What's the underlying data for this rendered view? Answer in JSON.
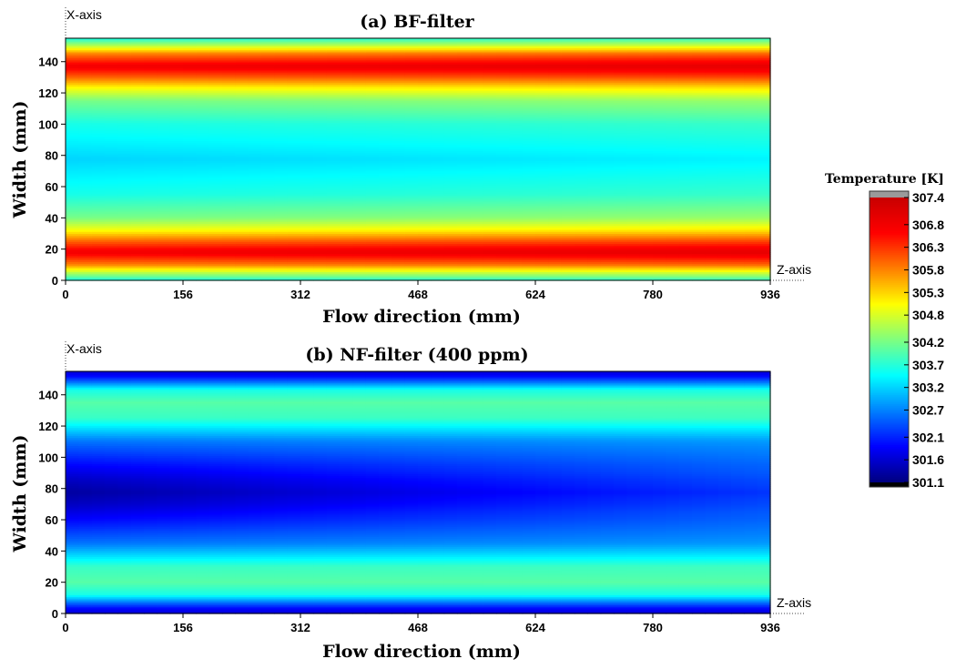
{
  "chart_data": [
    {
      "type": "heatmap",
      "title": "(a) BF-filter",
      "xlabel": "Flow direction (mm)",
      "ylabel": "Width (mm)",
      "x_axis_name": "Z-axis",
      "y_axis_name": "X-axis",
      "xlim": [
        0,
        936
      ],
      "ylim": [
        0,
        155
      ],
      "x_ticks": [
        "0",
        "156",
        "312",
        "468",
        "624",
        "780",
        "936"
      ],
      "y_ticks": [
        "0",
        "20",
        "40",
        "60",
        "80",
        "100",
        "120",
        "140"
      ],
      "profile": {
        "width_mm": [
          0,
          5,
          10,
          18,
          25,
          32,
          40,
          55,
          77.5,
          100,
          115,
          123,
          130,
          137,
          145,
          150,
          155
        ],
        "temperature_K": [
          303.6,
          304.6,
          305.8,
          306.8,
          306.0,
          305.0,
          304.2,
          303.6,
          303.2,
          303.6,
          304.2,
          305.0,
          306.0,
          306.8,
          305.8,
          304.6,
          303.6
        ]
      },
      "x_variation": {
        "x_mm": [
          0,
          936
        ],
        "offset_K": [
          0,
          0.2
        ]
      }
    },
    {
      "type": "heatmap",
      "title": "(b) NF-filter (400 ppm)",
      "xlabel": "Flow direction (mm)",
      "ylabel": "Width (mm)",
      "x_axis_name": "Z-axis",
      "y_axis_name": "X-axis",
      "xlim": [
        0,
        936
      ],
      "ylim": [
        0,
        155
      ],
      "x_ticks": [
        "0",
        "156",
        "312",
        "468",
        "624",
        "780",
        "936"
      ],
      "y_ticks": [
        "0",
        "20",
        "40",
        "60",
        "80",
        "100",
        "120",
        "140"
      ],
      "profile": {
        "width_mm": [
          0,
          3,
          7,
          12,
          20,
          30,
          45,
          60,
          70,
          77.5,
          85,
          95,
          110,
          125,
          135,
          143,
          148,
          152,
          155
        ],
        "temperature_K": [
          301.6,
          301.9,
          302.6,
          303.6,
          304.0,
          303.8,
          302.6,
          301.9,
          301.5,
          301.3,
          301.5,
          301.9,
          302.6,
          303.8,
          304.0,
          303.6,
          302.6,
          301.9,
          301.6
        ]
      },
      "x_variation": {
        "x_mm": [
          0,
          936
        ],
        "core_warming_K": [
          0,
          0.9
        ]
      }
    }
  ],
  "colorbar": {
    "title": "Temperature [K]",
    "labels": [
      "307.4",
      "306.8",
      "306.3",
      "305.8",
      "305.3",
      "304.8",
      "304.2",
      "303.7",
      "303.2",
      "302.7",
      "302.1",
      "301.6",
      "301.1"
    ],
    "min": 301.1,
    "max": 307.4,
    "over_color": "#9a9a9a",
    "under_color": "#000000"
  },
  "colormap": [
    "#00007f",
    "#0000ff",
    "#007fff",
    "#00ffff",
    "#7fff7f",
    "#ffff00",
    "#ff7f00",
    "#ff0000",
    "#c80000"
  ]
}
